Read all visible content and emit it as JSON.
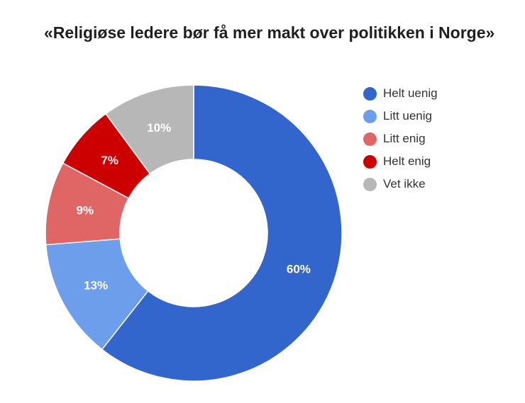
{
  "chart_data": {
    "type": "pie",
    "title": "«Religiøse ledere bør få mer makt over politikken i Norge»",
    "categories": [
      "Helt uenig",
      "Litt uenig",
      "Litt enig",
      "Helt enig",
      "Vet ikke"
    ],
    "values": [
      60,
      13,
      9,
      7,
      10
    ],
    "labels": [
      "60%",
      "13%",
      "9%",
      "7%",
      "10%"
    ],
    "colors": [
      "#3366cc",
      "#6d9eeb",
      "#e06666",
      "#cc0000",
      "#b7b7b7"
    ],
    "donut": true,
    "legend": "right"
  }
}
